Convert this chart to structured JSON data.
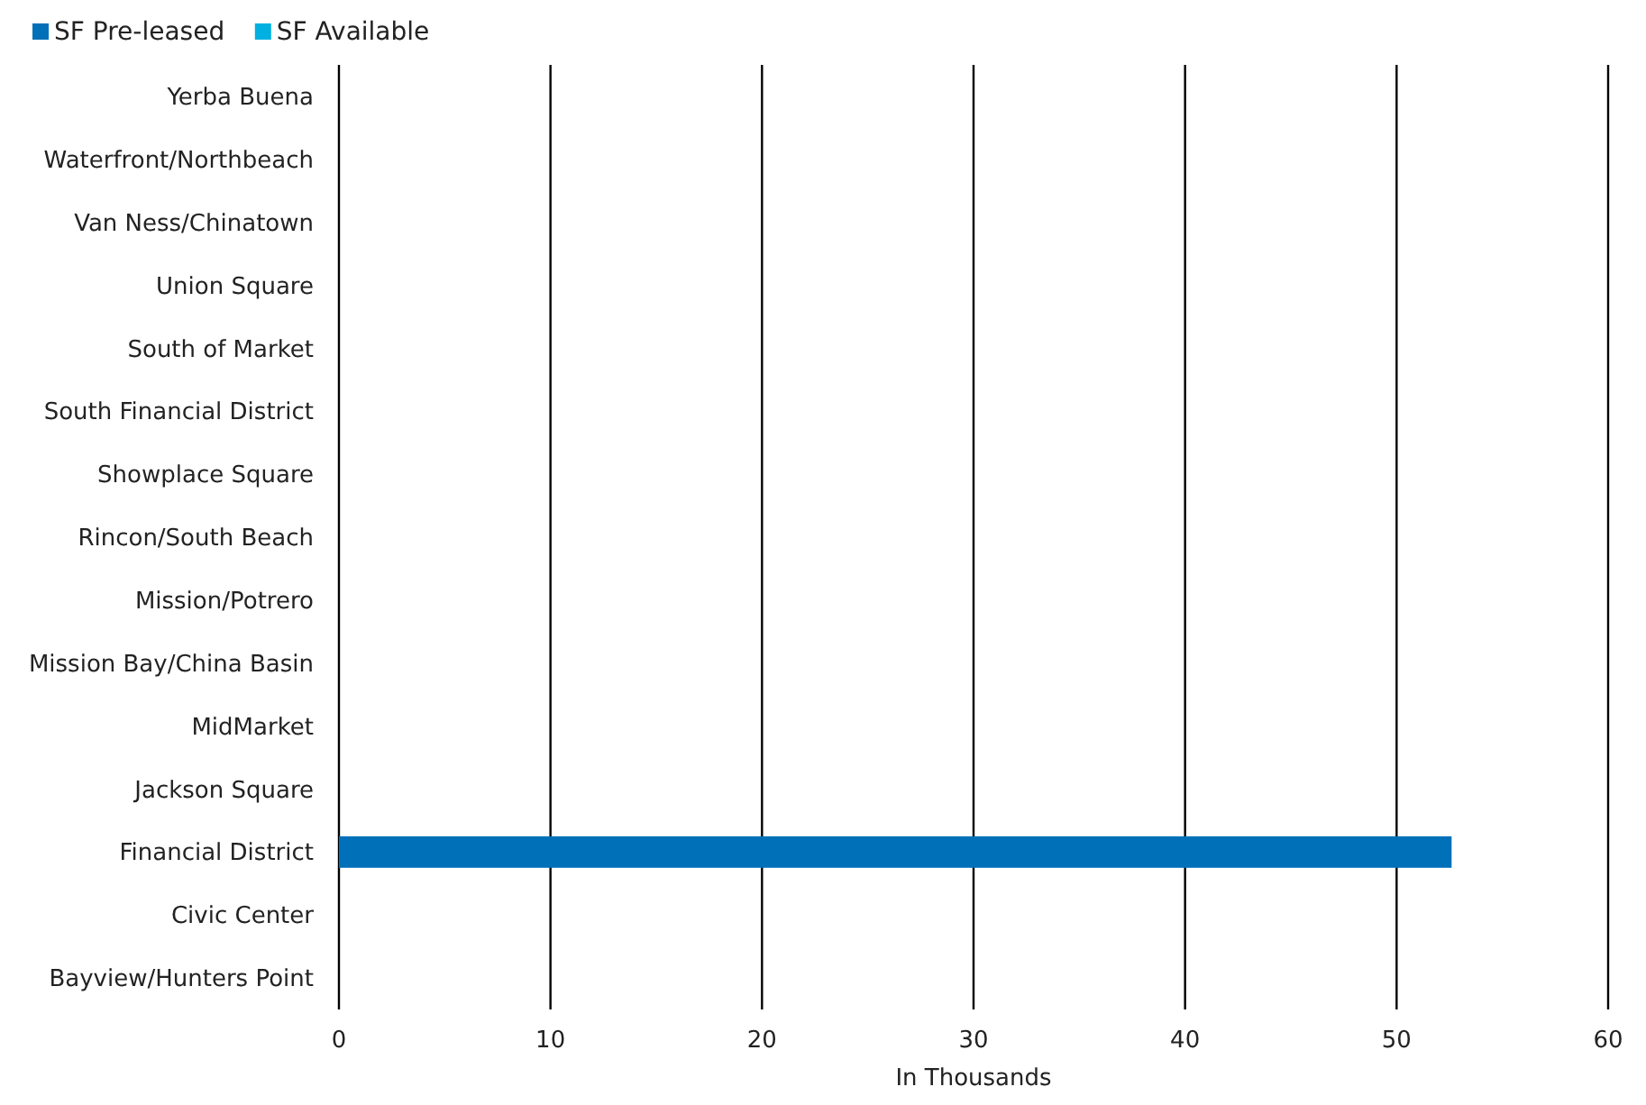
{
  "chart_data": {
    "type": "bar",
    "orientation": "horizontal",
    "categories": [
      "Yerba Buena",
      "Waterfront/Northbeach",
      "Van Ness/Chinatown",
      "Union Square",
      "South of Market",
      "South Financial District",
      "Showplace Square",
      "Rincon/South Beach",
      "Mission/Potrero",
      "Mission Bay/China Basin",
      "MidMarket",
      "Jackson Square",
      "Financial District",
      "Civic Center",
      "Bayview/Hunters Point"
    ],
    "series": [
      {
        "name": "SF Pre-leased",
        "color": "#0070b8",
        "values": [
          0,
          0,
          0,
          0,
          0,
          0,
          0,
          0,
          0,
          0,
          0,
          0,
          52.6,
          0,
          0
        ]
      },
      {
        "name": "SF Available",
        "color": "#00b0e0",
        "values": [
          0,
          0,
          0,
          0,
          0,
          0,
          0,
          0,
          0,
          0,
          0,
          0,
          0,
          0,
          0
        ]
      }
    ],
    "xlim": [
      0,
      60
    ],
    "xticks": [
      0,
      10,
      20,
      30,
      40,
      50,
      60
    ],
    "xlabel": "In Thousands",
    "grid": "x",
    "legend": "top left"
  }
}
